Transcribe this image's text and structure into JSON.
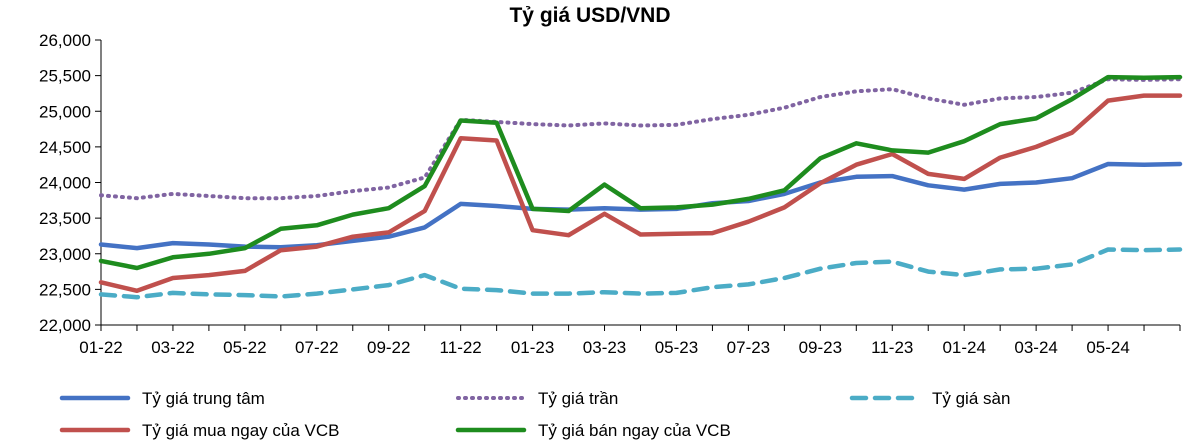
{
  "chart_data": {
    "type": "line",
    "title": "Tỷ giá USD/VND",
    "xlabel": "",
    "ylabel": "",
    "ylim": [
      22000,
      26000
    ],
    "y_ticks": [
      "22,000",
      "22,500",
      "23,000",
      "23,500",
      "24,000",
      "24,500",
      "25,000",
      "25,500",
      "26,000"
    ],
    "x_ticks": [
      "01-22",
      "03-22",
      "05-22",
      "07-22",
      "09-22",
      "11-22",
      "01-23",
      "03-23",
      "05-23",
      "07-23",
      "09-23",
      "11-23",
      "01-24",
      "03-24",
      "05-24"
    ],
    "x": [
      "01-22",
      "02-22",
      "03-22",
      "04-22",
      "05-22",
      "06-22",
      "07-22",
      "08-22",
      "09-22",
      "10-22",
      "11-22",
      "12-22",
      "01-23",
      "02-23",
      "03-23",
      "04-23",
      "05-23",
      "06-23",
      "07-23",
      "08-23",
      "09-23",
      "10-23",
      "11-23",
      "12-23",
      "01-24",
      "02-24",
      "03-24",
      "04-24",
      "05-24",
      "06-24",
      "07-24"
    ],
    "grid": false,
    "legend_position": "bottom",
    "series": [
      {
        "name": "Tỷ giá trung tâm",
        "color": "#4472c4",
        "dash": "solid",
        "values": [
          23130,
          23080,
          23150,
          23130,
          23100,
          23090,
          23120,
          23180,
          23240,
          23370,
          23700,
          23670,
          23630,
          23620,
          23640,
          23620,
          23630,
          23710,
          23740,
          23840,
          24000,
          24080,
          24090,
          23960,
          23900,
          23980,
          24000,
          24060,
          24260,
          24250,
          24260
        ]
      },
      {
        "name": "Tỷ giá trần",
        "color": "#8064a2",
        "dash": "dotted",
        "values": [
          23820,
          23780,
          23840,
          23810,
          23780,
          23780,
          23810,
          23880,
          23930,
          24070,
          24880,
          24850,
          24820,
          24800,
          24830,
          24800,
          24810,
          24890,
          24950,
          25050,
          25200,
          25280,
          25310,
          25180,
          25090,
          25180,
          25200,
          25260,
          25450,
          25440,
          25450
        ]
      },
      {
        "name": "Tỷ giá sàn",
        "color": "#4bacc6",
        "dash": "dashed",
        "values": [
          22430,
          22390,
          22450,
          22430,
          22420,
          22400,
          22440,
          22500,
          22560,
          22700,
          22510,
          22490,
          22440,
          22440,
          22460,
          22440,
          22450,
          22530,
          22570,
          22660,
          22790,
          22870,
          22890,
          22750,
          22700,
          22780,
          22790,
          22850,
          23060,
          23050,
          23060
        ]
      },
      {
        "name": "Tỷ giá mua ngay của VCB",
        "color": "#c0504d",
        "dash": "solid",
        "values": [
          22600,
          22480,
          22660,
          22700,
          22760,
          23050,
          23100,
          23240,
          23300,
          23600,
          24620,
          24590,
          23330,
          23260,
          23560,
          23270,
          23280,
          23290,
          23450,
          23650,
          23990,
          24250,
          24400,
          24120,
          24050,
          24350,
          24500,
          24700,
          25150,
          25220,
          25220
        ]
      },
      {
        "name": "Tỷ giá bán ngay của VCB",
        "color": "#1e8c1e",
        "dash": "solid",
        "values": [
          22900,
          22800,
          22950,
          23000,
          23080,
          23350,
          23400,
          23550,
          23640,
          23950,
          24870,
          24840,
          23630,
          23600,
          23970,
          23640,
          23650,
          23690,
          23770,
          23890,
          24340,
          24550,
          24450,
          24420,
          24580,
          24820,
          24900,
          25170,
          25480,
          25470,
          25480
        ]
      }
    ]
  }
}
